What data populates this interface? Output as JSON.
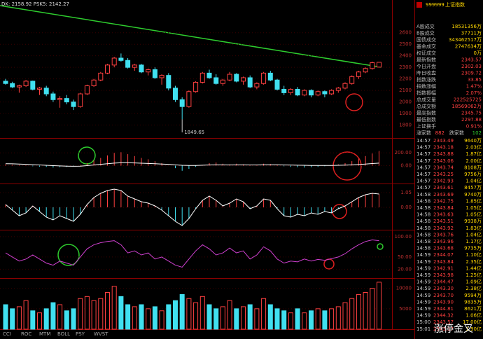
{
  "header": {
    "indicator_text": "DK: 2158.92  PSK5: 2142.27"
  },
  "price_chart": {
    "ylim": [
      1700,
      2750
    ],
    "yticks": [
      1800,
      1900,
      2000,
      2100,
      2200,
      2300,
      2400,
      2500,
      2600
    ],
    "low_label": "1849.65",
    "candles": [
      [
        2180,
        2200,
        2150,
        2160
      ],
      [
        2160,
        2175,
        2120,
        2130
      ],
      [
        2130,
        2150,
        2080,
        2140
      ],
      [
        2140,
        2190,
        2130,
        2180
      ],
      [
        2180,
        2185,
        2100,
        2110
      ],
      [
        2110,
        2130,
        2060,
        2120
      ],
      [
        2120,
        2140,
        2050,
        2070
      ],
      [
        2070,
        2090,
        2000,
        2020
      ],
      [
        2020,
        2050,
        1950,
        2030
      ],
      [
        2030,
        2060,
        1980,
        2000
      ],
      [
        2000,
        2020,
        1930,
        1960
      ],
      [
        1960,
        2080,
        1950,
        2070
      ],
      [
        2070,
        2150,
        2060,
        2140
      ],
      [
        2140,
        2200,
        2130,
        2190
      ],
      [
        2190,
        2260,
        2180,
        2250
      ],
      [
        2250,
        2330,
        2240,
        2320
      ],
      [
        2320,
        2390,
        2300,
        2380
      ],
      [
        2380,
        2420,
        2350,
        2360
      ],
      [
        2360,
        2380,
        2290,
        2300
      ],
      [
        2300,
        2330,
        2270,
        2320
      ],
      [
        2320,
        2330,
        2250,
        2260
      ],
      [
        2260,
        2290,
        2230,
        2280
      ],
      [
        2280,
        2300,
        2200,
        2210
      ],
      [
        2210,
        2240,
        2150,
        2230
      ],
      [
        2230,
        2250,
        2100,
        2120
      ],
      [
        2120,
        2140,
        2000,
        2020
      ],
      [
        2020,
        2040,
        1849.65,
        1960
      ],
      [
        1960,
        2100,
        1950,
        2090
      ],
      [
        2090,
        2180,
        2080,
        2170
      ],
      [
        2170,
        2260,
        2160,
        2250
      ],
      [
        2250,
        2280,
        2200,
        2210
      ],
      [
        2210,
        2240,
        2150,
        2160
      ],
      [
        2160,
        2200,
        2140,
        2190
      ],
      [
        2190,
        2260,
        2180,
        2240
      ],
      [
        2240,
        2250,
        2170,
        2180
      ],
      [
        2180,
        2220,
        2150,
        2210
      ],
      [
        2210,
        2230,
        2120,
        2130
      ],
      [
        2130,
        2170,
        2110,
        2160
      ],
      [
        2160,
        2260,
        2150,
        2250
      ],
      [
        2250,
        2270,
        2180,
        2190
      ],
      [
        2190,
        2200,
        2100,
        2110
      ],
      [
        2110,
        2140,
        2060,
        2080
      ],
      [
        2080,
        2120,
        2060,
        2110
      ],
      [
        2110,
        2130,
        2050,
        2060
      ],
      [
        2060,
        2110,
        2050,
        2100
      ],
      [
        2100,
        2110,
        2040,
        2060
      ],
      [
        2060,
        2100,
        2050,
        2090
      ],
      [
        2090,
        2100,
        2040,
        2070
      ],
      [
        2070,
        2110,
        2060,
        2100
      ],
      [
        2100,
        2130,
        2080,
        2120
      ],
      [
        2120,
        2170,
        2110,
        2160
      ],
      [
        2160,
        2230,
        2150,
        2220
      ],
      [
        2220,
        2270,
        2200,
        2260
      ],
      [
        2260,
        2300,
        2250,
        2290
      ],
      [
        2290,
        2350,
        2280,
        2340
      ],
      [
        2302.03,
        2345.75,
        2297.88,
        2343.57
      ]
    ]
  },
  "macd_panel": {
    "ylim": [
      -280,
      400
    ],
    "yticks": [
      {
        "value": 0,
        "label": "0.00"
      },
      {
        "value": 200,
        "label": "200.00"
      }
    ],
    "bars": [
      20,
      15,
      10,
      5,
      -10,
      -15,
      -20,
      -30,
      -25,
      -20,
      -10,
      10,
      40,
      80,
      120,
      160,
      200,
      210,
      180,
      150,
      120,
      100,
      70,
      40,
      0,
      -40,
      -80,
      -50,
      -20,
      10,
      40,
      50,
      30,
      20,
      30,
      20,
      10,
      15,
      30,
      25,
      10,
      -10,
      -20,
      -25,
      -30,
      -25,
      -20,
      -10,
      0,
      20,
      40,
      70,
      110,
      150,
      190,
      230
    ],
    "line": [
      30,
      28,
      25,
      20,
      15,
      10,
      5,
      0,
      -5,
      -8,
      -10,
      -8,
      0,
      10,
      20,
      30,
      40,
      45,
      45,
      42,
      38,
      34,
      30,
      25,
      20,
      12,
      5,
      2,
      3,
      6,
      10,
      12,
      12,
      11,
      12,
      12,
      11,
      11,
      13,
      14,
      13,
      11,
      9,
      7,
      5,
      3,
      2,
      2,
      3,
      5,
      8,
      12,
      18,
      25,
      32,
      40
    ]
  },
  "osc_panel": {
    "ylim": [
      -1.5,
      1.5
    ],
    "yticks": [
      {
        "value": 0,
        "label": "0.00"
      },
      1.05
    ],
    "values": [
      0.2,
      -0.2,
      -0.6,
      -0.4,
      0.1,
      -0.3,
      -0.7,
      -0.9,
      -0.6,
      -0.8,
      -1,
      -0.5,
      0.2,
      0.7,
      1,
      1.2,
      1.3,
      1.2,
      0.8,
      0.6,
      0.4,
      0.3,
      0.1,
      -0.2,
      -0.6,
      -1,
      -1.3,
      -0.8,
      -0.1,
      0.5,
      0.8,
      0.5,
      0.1,
      0.3,
      0.6,
      0.4,
      -0.1,
      0.1,
      0.6,
      0.5,
      -0.1,
      -0.6,
      -0.7,
      -0.5,
      -0.6,
      -0.4,
      -0.5,
      -0.3,
      -0.4,
      -0.1,
      0.1,
      0.4,
      0.7,
      0.9,
      1,
      0.95
    ]
  },
  "rsi_panel": {
    "ylim": [
      0,
      110
    ],
    "yticks": [
      {
        "value": 20,
        "label": "20.00"
      },
      {
        "value": 50,
        "label": "50.00"
      },
      {
        "value": 100,
        "label": "100.00"
      }
    ],
    "values": [
      60,
      50,
      40,
      45,
      55,
      45,
      35,
      30,
      40,
      35,
      30,
      50,
      70,
      80,
      85,
      88,
      90,
      80,
      60,
      65,
      55,
      60,
      45,
      50,
      40,
      30,
      25,
      45,
      65,
      80,
      70,
      55,
      60,
      72,
      60,
      65,
      45,
      55,
      75,
      65,
      45,
      35,
      40,
      38,
      45,
      40,
      44,
      42,
      46,
      50,
      58,
      70,
      80,
      88,
      92,
      90
    ]
  },
  "volume_panel": {
    "ylim": [
      0,
      12000
    ],
    "yticks": [
      5000,
      10000
    ],
    "values": [
      6000,
      5000,
      5500,
      7000,
      4500,
      4000,
      5000,
      6500,
      6000,
      4500,
      5000,
      7500,
      8000,
      7000,
      7500,
      9000,
      10500,
      8000,
      6000,
      5500,
      6000,
      5000,
      5500,
      4500,
      6000,
      7000,
      8500,
      7500,
      6500,
      8000,
      6000,
      5000,
      5500,
      7000,
      5000,
      5500,
      6000,
      5000,
      7500,
      6000,
      5000,
      4500,
      4000,
      5000,
      4000,
      4500,
      5000,
      4500,
      5000,
      5500,
      6500,
      7500,
      8500,
      9000,
      10000,
      11500
    ]
  },
  "tabs": [
    "CCI",
    "ROC",
    "MTM",
    "BOLL",
    "PSY",
    "WVST"
  ],
  "quote": {
    "code": "999999",
    "name": "上证指数",
    "rows": [
      [
        "A股成交",
        "18531356万"
      ],
      [
        "B股成交",
        "37711万"
      ],
      [
        "国债成交",
        "343462517万"
      ],
      [
        "基金成交",
        "2747634万"
      ],
      [
        "权证成交",
        "0万"
      ],
      [
        "最新指数",
        "2343.57"
      ],
      [
        "今日开盘",
        "2302.03"
      ],
      [
        "昨日收盘",
        "2309.72"
      ],
      [
        "指数涨跌",
        "33.85"
      ],
      [
        "指数涨幅",
        "1.47%"
      ],
      [
        "指数振幅",
        "2.07%"
      ],
      [
        "总成交量",
        "222525725"
      ],
      [
        "总成交额",
        "18569062万"
      ],
      [
        "最高指数",
        "2345.75"
      ],
      [
        "最低指数",
        "2297.88"
      ],
      [
        "上证换手",
        "0.91%"
      ]
    ],
    "breadth": [
      "涨家数",
      "882",
      "跌家数",
      "102"
    ],
    "ticks": [
      [
        "14:57",
        "2343.49",
        "9640万"
      ],
      [
        "14:57",
        "2343.18",
        "2.03亿"
      ],
      [
        "14:57",
        "2343.88",
        "1.87亿"
      ],
      [
        "14:57",
        "2343.06",
        "2.00亿"
      ],
      [
        "14:57",
        "2343.74",
        "8108万"
      ],
      [
        "14:57",
        "2343.25",
        "9756万"
      ],
      [
        "14:57",
        "2342.93",
        "1.04亿"
      ],
      [
        "14:57",
        "2343.61",
        "8457万"
      ],
      [
        "14:58",
        "2343.69",
        "9740万"
      ],
      [
        "14:58",
        "2342.75",
        "1.85亿"
      ],
      [
        "14:58",
        "2343.84",
        "1.05亿"
      ],
      [
        "14:58",
        "2343.63",
        "1.05亿"
      ],
      [
        "14:58",
        "2343.51",
        "9938万"
      ],
      [
        "14:58",
        "2343.92",
        "1.83亿"
      ],
      [
        "14:58",
        "2343.76",
        "1.04亿"
      ],
      [
        "14:58",
        "2343.96",
        "1.17亿"
      ],
      [
        "14:58",
        "2343.68",
        "9735万"
      ],
      [
        "14:59",
        "2344.07",
        "1.10亿"
      ],
      [
        "14:59",
        "2343.84",
        "2.35亿"
      ],
      [
        "14:59",
        "2342.91",
        "1.44亿"
      ],
      [
        "14:59",
        "2343.98",
        "1.25亿"
      ],
      [
        "14:59",
        "2344.47",
        "1.09亿"
      ],
      [
        "14:59",
        "2343.30",
        "2.38亿"
      ],
      [
        "14:59",
        "2343.70",
        "9594万"
      ],
      [
        "14:59",
        "2343.90",
        "9835万"
      ],
      [
        "14:59",
        "2344.81",
        "8621万"
      ],
      [
        "14:59",
        "2344.32",
        "1.06亿"
      ],
      [
        "15:00",
        "2343.57",
        "17.00亿"
      ],
      [
        "15:01",
        "2343.57",
        "1.90亿"
      ]
    ]
  },
  "watermark": "涨停金叉"
}
